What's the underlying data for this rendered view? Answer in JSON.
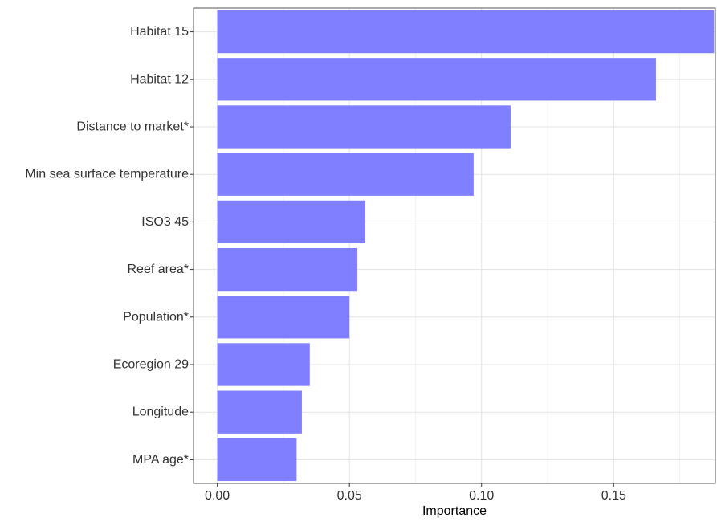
{
  "chart_data": {
    "type": "bar",
    "orientation": "horizontal",
    "categories": [
      "Habitat 15",
      "Habitat 12",
      "Distance to market*",
      "Min sea surface temperature",
      "ISO3 45",
      "Reef area*",
      "Population*",
      "Ecoregion 29",
      "Longitude",
      "MPA age*"
    ],
    "values": [
      0.188,
      0.166,
      0.111,
      0.097,
      0.056,
      0.053,
      0.05,
      0.035,
      0.032,
      0.03
    ],
    "xlabel": "Importance",
    "ylabel": "",
    "xlim": [
      -0.009,
      0.1885
    ],
    "x_ticks": [
      0.0,
      0.05,
      0.1,
      0.15
    ],
    "x_tick_labels": [
      "0.00",
      "0.05",
      "0.10",
      "0.15"
    ],
    "bar_color": "#7f7fff",
    "grid": true,
    "legend": "none"
  }
}
